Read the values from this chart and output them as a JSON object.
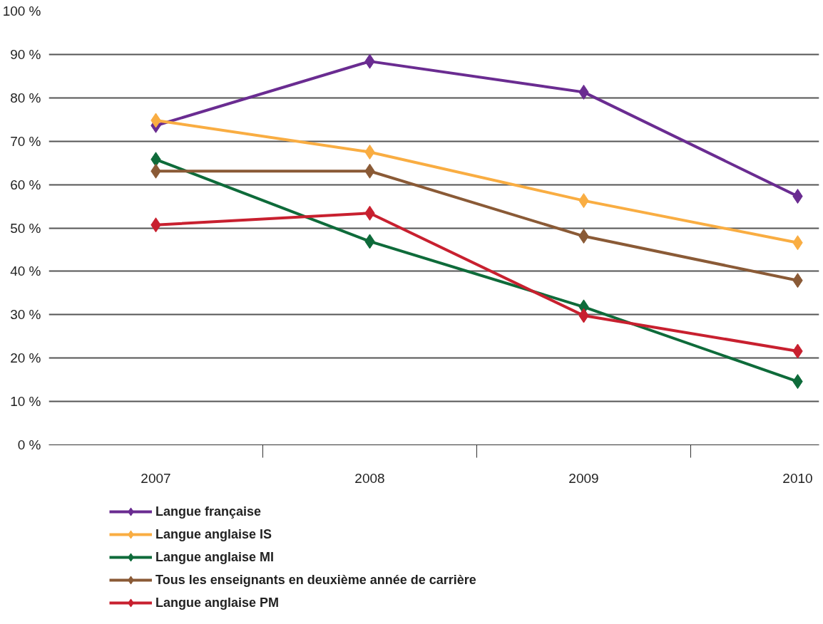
{
  "chart_data": {
    "type": "line",
    "categories": [
      "2007",
      "2008",
      "2009",
      "2010"
    ],
    "series": [
      {
        "name": "Langue française",
        "color": "#6a2c91",
        "values": [
          73.6,
          88.4,
          81.3,
          57.3
        ]
      },
      {
        "name": "Langue anglaise IS",
        "color": "#f9ad42",
        "values": [
          74.8,
          67.5,
          56.3,
          46.6
        ]
      },
      {
        "name": "Langue anglaise MI",
        "color": "#0e6b3a",
        "values": [
          65.8,
          46.9,
          31.8,
          14.6
        ]
      },
      {
        "name": "Tous les enseignants en deuxième année de carrière",
        "color": "#8a5a36",
        "values": [
          63.1,
          63.1,
          48.1,
          37.9
        ]
      },
      {
        "name": "Langue anglaise PM",
        "color": "#c8202f",
        "values": [
          50.7,
          53.4,
          29.8,
          21.6
        ]
      }
    ],
    "ylim": [
      0,
      100
    ],
    "yticks": [
      {
        "value": 0,
        "label": "0 %"
      },
      {
        "value": 10,
        "label": "10 %"
      },
      {
        "value": 20,
        "label": "20 %"
      },
      {
        "value": 30,
        "label": "30 %"
      },
      {
        "value": 40,
        "label": "40 %"
      },
      {
        "value": 50,
        "label": "50 %"
      },
      {
        "value": 60,
        "label": "60 %"
      },
      {
        "value": 70,
        "label": "70 %"
      },
      {
        "value": 80,
        "label": "80 %"
      },
      {
        "value": 90,
        "label": "90 %"
      },
      {
        "value": 100,
        "label": "100 %"
      }
    ],
    "grid": "y",
    "legend": "bottom",
    "marker": "diamond",
    "line_style": "solid"
  }
}
